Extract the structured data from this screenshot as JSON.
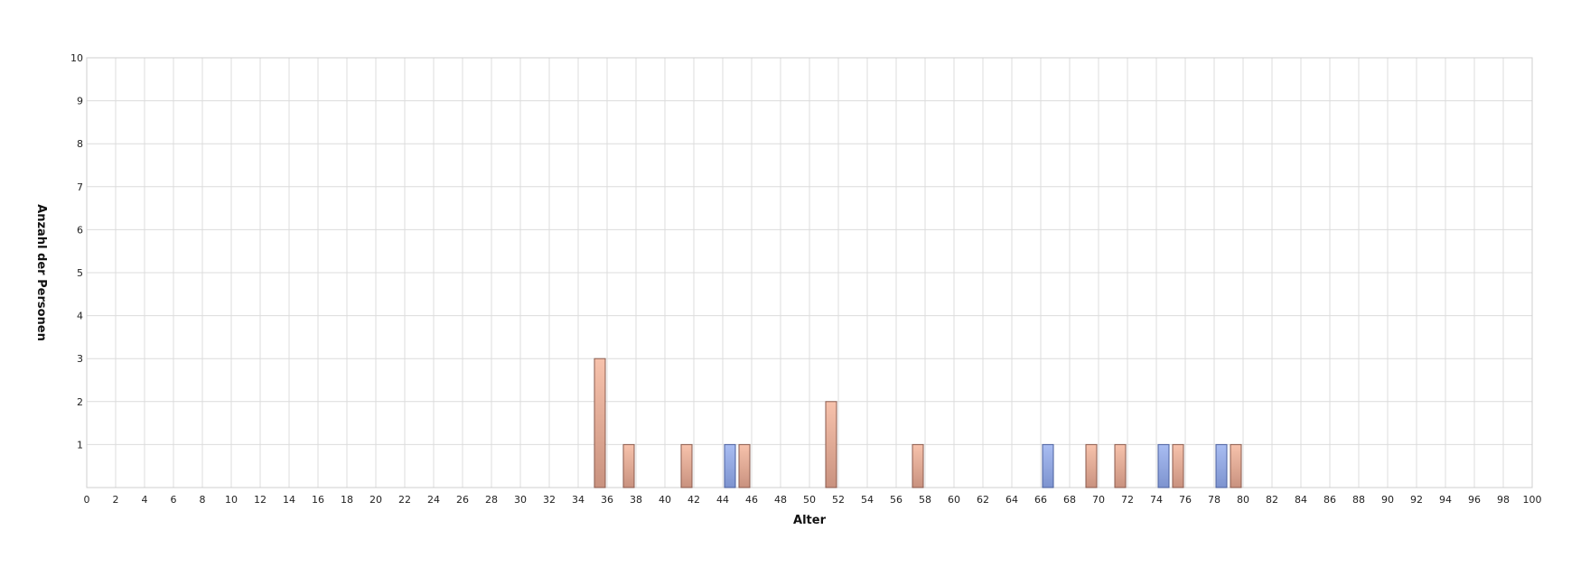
{
  "chart_data": {
    "type": "bar",
    "title": "",
    "xlabel": "Alter",
    "ylabel": "Anzahl der Personen",
    "xlim": [
      0,
      100
    ],
    "ylim": [
      0,
      10
    ],
    "x_tick_step": 2,
    "y_ticks": [
      1,
      2,
      3,
      4,
      5,
      6,
      7,
      8,
      9,
      10
    ],
    "grid": true,
    "legend": "none",
    "series": [
      {
        "color": "#8fa8e8",
        "points": [
          {
            "x": 44,
            "y": 1
          },
          {
            "x": 66,
            "y": 1
          },
          {
            "x": 74,
            "y": 1
          },
          {
            "x": 78,
            "y": 1
          }
        ]
      },
      {
        "color": "#f2b49c",
        "points": [
          {
            "x": 35,
            "y": 3
          },
          {
            "x": 37,
            "y": 1
          },
          {
            "x": 41,
            "y": 1
          },
          {
            "x": 45,
            "y": 1
          },
          {
            "x": 51,
            "y": 2
          },
          {
            "x": 57,
            "y": 1
          },
          {
            "x": 69,
            "y": 1
          },
          {
            "x": 71,
            "y": 1
          },
          {
            "x": 75,
            "y": 1
          },
          {
            "x": 79,
            "y": 1
          }
        ]
      }
    ]
  }
}
